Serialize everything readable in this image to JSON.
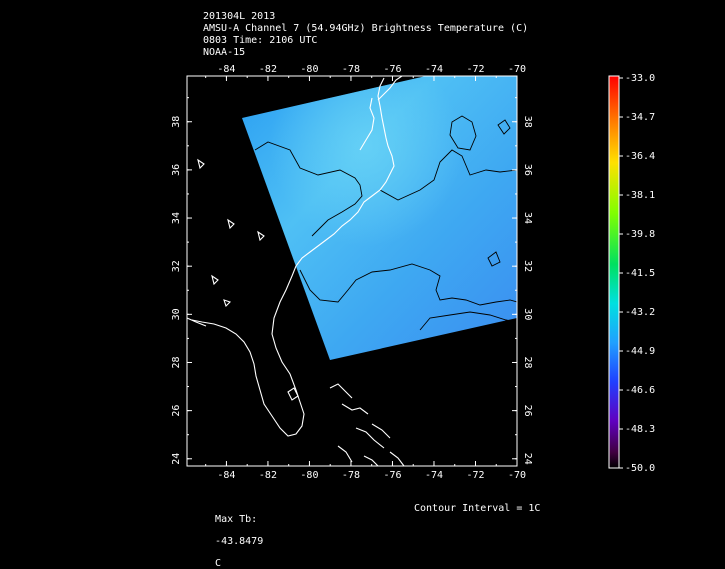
{
  "header": {
    "line1": "201304L 2013",
    "line2": "AMSU-A Channel 7 (54.94GHz) Brightness Temperature (C)",
    "line3": "0803 Time: 2106 UTC",
    "line4": "NOAA-15"
  },
  "axes": {
    "lon_ticks": [
      "-84",
      "-82",
      "-80",
      "-78",
      "-76",
      "-74",
      "-72",
      "-70"
    ],
    "lat_ticks": [
      "24",
      "26",
      "28",
      "30",
      "32",
      "34",
      "36",
      "38"
    ]
  },
  "colorbar": {
    "labels": [
      "-33.0",
      "-34.7",
      "-36.4",
      "-38.1",
      "-39.8",
      "-41.5",
      "-43.2",
      "-44.9",
      "-46.6",
      "-48.3",
      "-50.0"
    ],
    "max": -33.0,
    "min": -50.0
  },
  "footer": {
    "max_tb_label": "Max Tb:",
    "max_tb_value": "-43.8479",
    "max_tb_unit": "C",
    "contour_interval": "Contour Interval = 1C"
  },
  "colors": {
    "swath_light": "#5cc8f6",
    "swath_mid": "#38aaf4",
    "swath_dark": "#3a8cf0",
    "coast": "#ffffff",
    "contour": "#000000"
  }
}
